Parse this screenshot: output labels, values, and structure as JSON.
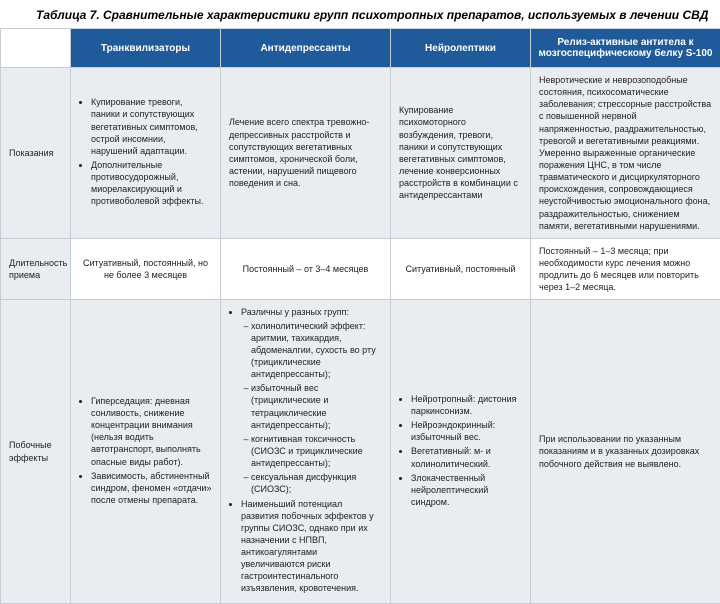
{
  "caption": "Таблица 7. Сравнительные характеристики групп психотропных препаратов, используемых в лечении СВД",
  "columns": [
    "Транквилизаторы",
    "Антидепрессанты",
    "Нейролептики",
    "Релиз-активные антитела к мозгоспецифическому белку S-100"
  ],
  "rows": {
    "r0": {
      "head": "Показания",
      "c1a": "Купирование тревоги, паники и сопутствующих вегетативных симптомов, острой инсомнии, нарушений адаптации.",
      "c1b": "Дополнительные противосудорожный, миорелаксирующий и противоболевой эффекты.",
      "c2": "Лечение всего спектра тревожно-депрессивных расстройств и сопутствующих вегетативных симптомов, хронической боли, астении, нарушений пищевого поведения и сна.",
      "c3": "Купирование психомоторного возбуждения, тревоги, паники и сопутствующих вегетативных симптомов, лечение конверсионных расстройств в комбинации с антидепрессантами",
      "c4": "Невротические и неврозоподобные состояния, психосоматические заболевания; стрессорные расстройства с повышенной нервной напряженностью, раздражительностью, тревогой и вегетативными реакциями. Умеренно выраженные органические поражения ЦНС, в том числе травматического и дисциркуляторного происхождения, сопровождающиеся неустойчивостью эмоционального фона, раздражительностью, снижением памяти, вегетативными нарушениями."
    },
    "r1": {
      "head": "Длительность приема",
      "c1": "Ситуативный, постоянный, но не более 3 месяцев",
      "c2": "Постоянный – от 3–4 месяцев",
      "c3": "Ситуативный, постоянный",
      "c4": "Постоянный – 1–3 месяца; при необходимости курс лечения можно продлить до 6 месяцев или повторить через 1–2 месяца."
    },
    "r2": {
      "head": "Побочные эффекты",
      "c1a": "Гиперседация: дневная сонливость, снижение концентрации внимания (нельзя водить автотранспорт, выполнять опасные виды работ).",
      "c1b": "Зависимость, абстинентный синдром, феномен «отдачи» после отмены препарата.",
      "c2top": "Различны у разных групп:",
      "c2s1": "холинолитический эффект: аритмии, тахикардия, абдоменалгии, сухость во рту (трициклические антидепрессанты);",
      "c2s2": "избыточный вес (трициклические и тетрациклические антидепрессанты);",
      "c2s3": "когнитивная токсичность (СИОЗС и трициклические антидепрессанты);",
      "c2s4": "сексуальная дисфункция (СИОЗС);",
      "c2bot": "Наименьший потенциал развития побочных эффектов у группы СИОЗС, однако при их назначении с НПВП, антикоагулянтами увеличиваются риски гастроинтестинального изъязвления, кровотечения.",
      "c3a": "Нейротропный: дистония паркинсонизм.",
      "c3b": "Нейроэндокринный: избыточный вес.",
      "c3c": "Вегетативный: м- и холинолитический.",
      "c3d": "Злокачественный нейролептический синдром.",
      "c4": "При использовании по указанным показаниям и в указанных дозировках побочного действия не выявлено."
    }
  }
}
